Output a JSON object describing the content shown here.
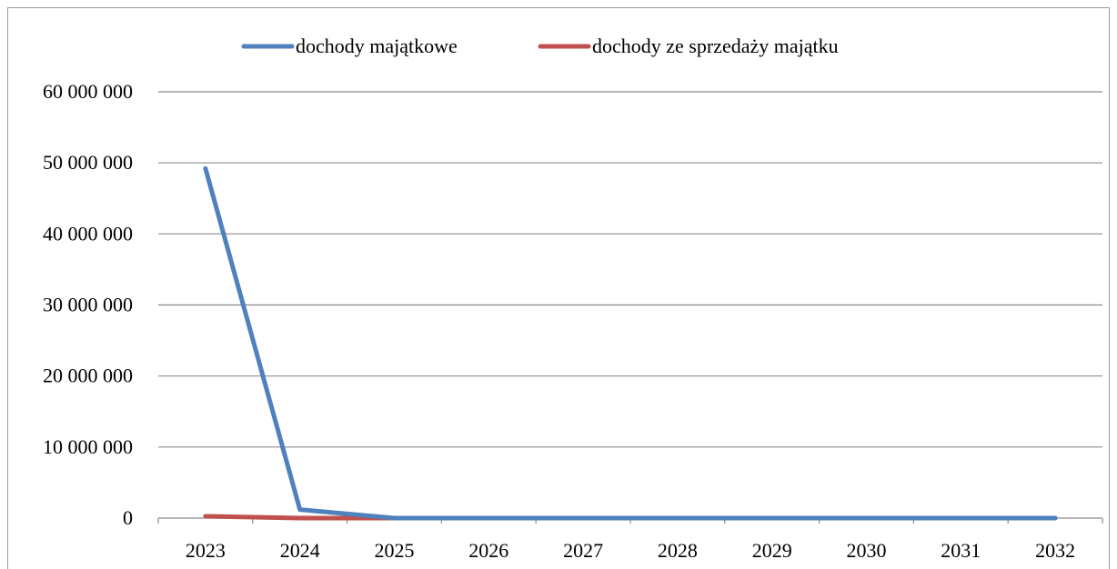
{
  "chart_data": {
    "type": "line",
    "categories": [
      "2023",
      "2024",
      "2025",
      "2026",
      "2027",
      "2028",
      "2029",
      "2030",
      "2031",
      "2032"
    ],
    "series": [
      {
        "name": "dochody majątkowe",
        "color": "#4f81bd",
        "values": [
          49200000,
          1200000,
          0,
          0,
          0,
          0,
          0,
          0,
          0,
          0
        ]
      },
      {
        "name": "dochody ze sprzedaży majątku",
        "color": "#c0504d",
        "values": [
          250000,
          0,
          0,
          0,
          0,
          0,
          0,
          0,
          0,
          0
        ]
      }
    ],
    "yticks": [
      "0",
      "10 000 000",
      "20 000 000",
      "30 000 000",
      "40 000 000",
      "50 000 000",
      "60 000 000"
    ],
    "ylim": [
      0,
      60000000
    ],
    "grid": true,
    "legend_position": "top"
  }
}
